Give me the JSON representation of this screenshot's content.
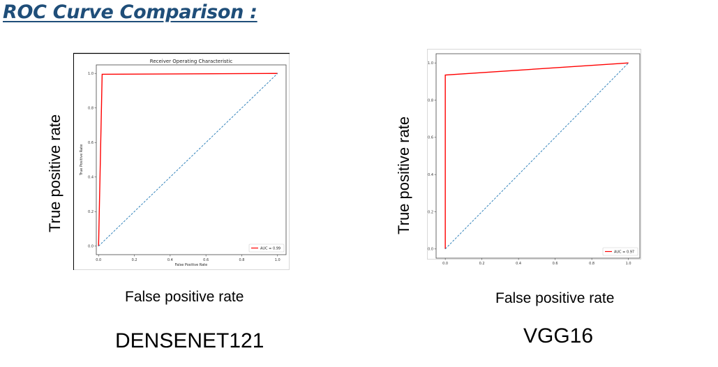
{
  "slide": {
    "title": "ROC Curve Comparison :"
  },
  "panels": [
    {
      "model_name": "DENSENET121",
      "y_caption": "True positive rate",
      "x_caption": "False positive rate"
    },
    {
      "model_name": "VGG16",
      "y_caption": "True positive rate",
      "x_caption": "False positive rate"
    }
  ],
  "chart_data": [
    {
      "type": "line",
      "title": "Receiver Operating Characteristic",
      "xlabel": "False Positive Rate",
      "ylabel": "True Positive Rate",
      "xlim": [
        0.0,
        1.0
      ],
      "ylim": [
        0.0,
        1.0
      ],
      "xticks": [
        "0.0",
        "0.2",
        "0.4",
        "0.6",
        "0.8",
        "1.0"
      ],
      "yticks": [
        "0.0",
        "0.2",
        "0.4",
        "0.6",
        "0.8",
        "1.0"
      ],
      "legend_position": "lower-right",
      "grid": false,
      "series": [
        {
          "name": "AUC = 0.99",
          "color": "#ff0000",
          "style": "solid",
          "x": [
            0.0,
            0.02,
            1.0
          ],
          "y": [
            0.0,
            0.995,
            1.0
          ]
        },
        {
          "color": "#1f77b4",
          "style": "dashed",
          "x": [
            0.0,
            1.0
          ],
          "y": [
            0.0,
            1.0
          ]
        }
      ]
    },
    {
      "type": "line",
      "title": "",
      "xlabel": "",
      "ylabel": "",
      "xlim": [
        0.0,
        1.0
      ],
      "ylim": [
        0.0,
        1.0
      ],
      "xticks": [
        "0.0",
        "0.2",
        "0.4",
        "0.6",
        "0.8",
        "1.0"
      ],
      "yticks": [
        "0.0",
        "0.2",
        "0.4",
        "0.6",
        "0.8",
        "1.0"
      ],
      "legend_position": "lower-right",
      "grid": false,
      "series": [
        {
          "name": "AUC = 0.97",
          "color": "#ff0000",
          "style": "solid",
          "x": [
            0.0,
            0.0,
            1.0
          ],
          "y": [
            0.0,
            0.935,
            1.0
          ]
        },
        {
          "color": "#1f77b4",
          "style": "dashed",
          "x": [
            0.0,
            1.0
          ],
          "y": [
            0.0,
            1.0
          ]
        }
      ]
    }
  ]
}
